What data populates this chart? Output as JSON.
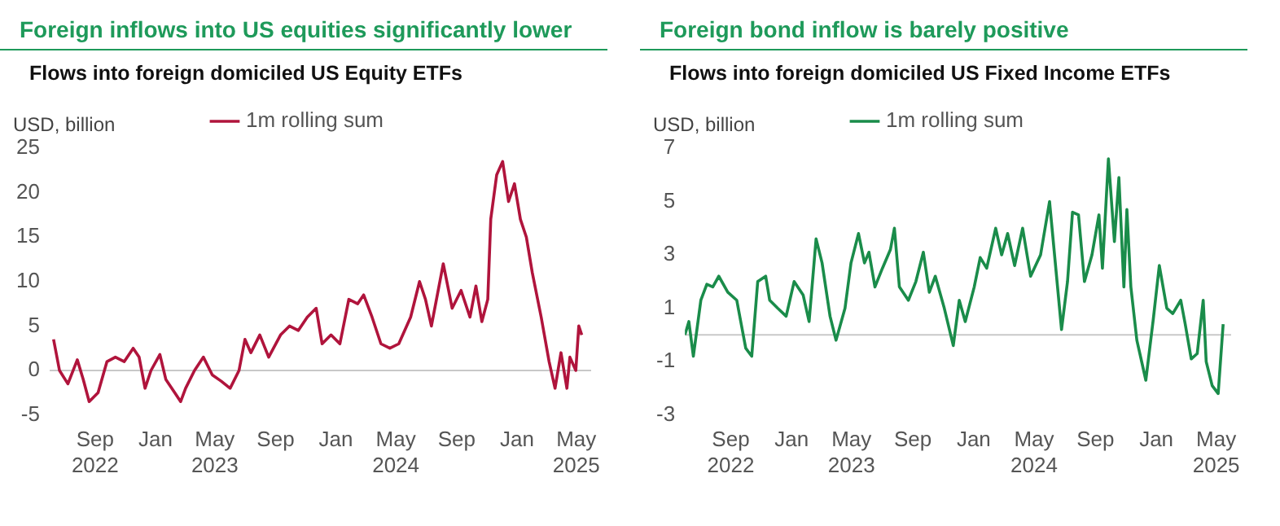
{
  "chart_data": [
    {
      "type": "line",
      "title": "Foreign inflows into US equities significantly lower",
      "subtitle": "Flows into foreign domiciled US Equity ETFs",
      "ylabel": "USD, billion",
      "legend": "top",
      "grid": false,
      "xlim": [
        "2022-06-01",
        "2025-05-31"
      ],
      "ylim": [
        -5,
        25
      ],
      "yticks": [
        -5,
        0,
        5,
        10,
        15,
        20,
        25
      ],
      "xticks": [
        {
          "value": "2022-09-01",
          "label": "Sep\n2022"
        },
        {
          "value": "2023-01-01",
          "label": "Jan"
        },
        {
          "value": "2023-05-01",
          "label": "May\n2023"
        },
        {
          "value": "2023-09-01",
          "label": "Sep"
        },
        {
          "value": "2024-01-01",
          "label": "Jan"
        },
        {
          "value": "2024-05-01",
          "label": "May\n2024"
        },
        {
          "value": "2024-09-01",
          "label": "Sep"
        },
        {
          "value": "2025-01-01",
          "label": "Jan"
        },
        {
          "value": "2025-05-01",
          "label": "May\n2025"
        }
      ],
      "ref_lines": [
        {
          "axis": "y",
          "value": 0,
          "color": "#c8c8c8"
        }
      ],
      "series": [
        {
          "name": "1m rolling sum",
          "color": "#b0143c",
          "x": [
            "2022-06-09",
            "2022-06-21",
            "2022-07-08",
            "2022-07-27",
            "2022-08-08",
            "2022-08-20",
            "2022-09-07",
            "2022-09-25",
            "2022-10-12",
            "2022-10-30",
            "2022-11-17",
            "2022-11-29",
            "2022-12-11",
            "2022-12-23",
            "2023-01-10",
            "2023-01-22",
            "2023-02-09",
            "2023-02-21",
            "2023-03-03",
            "2023-03-21",
            "2023-04-08",
            "2023-04-26",
            "2023-05-14",
            "2023-06-01",
            "2023-06-19",
            "2023-07-01",
            "2023-07-13",
            "2023-07-31",
            "2023-08-18",
            "2023-09-11",
            "2023-09-29",
            "2023-10-17",
            "2023-11-04",
            "2023-11-22",
            "2023-12-04",
            "2023-12-22",
            "2024-01-09",
            "2024-01-27",
            "2024-02-14",
            "2024-02-26",
            "2024-03-14",
            "2024-04-01",
            "2024-04-19",
            "2024-05-07",
            "2024-05-31",
            "2024-06-18",
            "2024-06-30",
            "2024-07-12",
            "2024-08-05",
            "2024-08-23",
            "2024-09-10",
            "2024-09-28",
            "2024-10-10",
            "2024-10-22",
            "2024-11-03",
            "2024-11-09",
            "2024-11-21",
            "2024-12-03",
            "2024-12-15",
            "2024-12-27",
            "2025-01-08",
            "2025-01-20",
            "2025-02-01",
            "2025-02-19",
            "2025-03-07",
            "2025-03-19",
            "2025-03-31",
            "2025-04-12",
            "2025-04-18",
            "2025-04-30",
            "2025-05-06",
            "2025-05-12"
          ],
          "values": [
            3.5,
            0,
            -1.5,
            1.2,
            -1,
            -3.5,
            -2.5,
            1,
            1.5,
            1,
            2.5,
            1.5,
            -2,
            0,
            1.8,
            -1,
            -2.5,
            -3.5,
            -2,
            0,
            1.5,
            -0.5,
            -1.2,
            -2,
            0,
            3.5,
            2,
            4,
            1.5,
            4,
            5,
            4.5,
            6,
            7,
            3,
            4,
            3,
            8,
            7.5,
            8.5,
            6,
            3,
            2.5,
            3,
            6,
            10,
            8,
            5,
            12,
            7,
            9,
            6,
            9.5,
            5.5,
            8,
            17,
            22,
            23.5,
            19,
            21,
            17,
            15,
            11,
            6,
            1,
            -2,
            2,
            -2,
            1.5,
            0,
            5,
            4
          ]
        }
      ]
    },
    {
      "type": "line",
      "title": "Foreign bond inflow is barely positive",
      "subtitle": "Flows into foreign domiciled US Fixed Income ETFs",
      "ylabel": "USD, billion",
      "legend": "top",
      "grid": false,
      "xlim": [
        "2022-06-01",
        "2025-05-31"
      ],
      "ylim": [
        -3,
        7
      ],
      "yticks": [
        -3,
        -1,
        1,
        3,
        5,
        7
      ],
      "xticks": [
        {
          "value": "2022-09-01",
          "label": "Sep\n2022"
        },
        {
          "value": "2023-01-01",
          "label": "Jan"
        },
        {
          "value": "2023-05-01",
          "label": "May\n2023"
        },
        {
          "value": "2023-09-01",
          "label": "Sep"
        },
        {
          "value": "2024-01-01",
          "label": "Jan"
        },
        {
          "value": "2024-05-01",
          "label": "May\n2024"
        },
        {
          "value": "2024-09-01",
          "label": "Sep"
        },
        {
          "value": "2025-01-01",
          "label": "Jan"
        },
        {
          "value": "2025-05-01",
          "label": "May\n2025"
        }
      ],
      "ref_lines": [
        {
          "axis": "y",
          "value": 0,
          "color": "#c8c8c8"
        }
      ],
      "series": [
        {
          "name": "1m rolling sum",
          "color": "#1a8c4a",
          "x": [
            "2022-06-01",
            "2022-06-09",
            "2022-06-18",
            "2022-07-03",
            "2022-07-15",
            "2022-07-27",
            "2022-08-08",
            "2022-08-26",
            "2022-09-13",
            "2022-09-23",
            "2022-10-01",
            "2022-10-13",
            "2022-10-25",
            "2022-11-10",
            "2022-11-18",
            "2022-12-04",
            "2022-12-21",
            "2023-01-06",
            "2023-01-24",
            "2023-02-05",
            "2023-02-19",
            "2023-03-03",
            "2023-03-19",
            "2023-03-31",
            "2023-04-18",
            "2023-04-30",
            "2023-05-15",
            "2023-05-27",
            "2023-06-05",
            "2023-06-17",
            "2023-07-02",
            "2023-07-18",
            "2023-07-26",
            "2023-08-05",
            "2023-08-23",
            "2023-09-07",
            "2023-09-22",
            "2023-10-04",
            "2023-10-16",
            "2023-11-03",
            "2023-11-21",
            "2023-12-03",
            "2023-12-15",
            "2024-01-02",
            "2024-01-14",
            "2024-01-27",
            "2024-02-14",
            "2024-02-26",
            "2024-03-09",
            "2024-03-23",
            "2024-04-08",
            "2024-04-24",
            "2024-05-14",
            "2024-06-01",
            "2024-06-11",
            "2024-06-25",
            "2024-07-07",
            "2024-07-17",
            "2024-07-29",
            "2024-08-10",
            "2024-08-25",
            "2024-09-08",
            "2024-09-15",
            "2024-09-27",
            "2024-10-09",
            "2024-10-18",
            "2024-10-28",
            "2024-11-03",
            "2024-11-11",
            "2024-11-23",
            "2024-12-11",
            "2024-12-26",
            "2025-01-07",
            "2025-01-22",
            "2025-02-03",
            "2025-02-19",
            "2025-02-28",
            "2025-03-12",
            "2025-03-24",
            "2025-04-05",
            "2025-04-11",
            "2025-04-23",
            "2025-05-05",
            "2025-05-15"
          ],
          "values": [
            0,
            0.5,
            -0.8,
            1.3,
            1.9,
            1.8,
            2.2,
            1.6,
            1.3,
            0.3,
            -0.5,
            -0.8,
            2,
            2.2,
            1.3,
            1,
            0.7,
            2,
            1.5,
            0.5,
            3.6,
            2.7,
            0.7,
            -0.2,
            1,
            2.7,
            3.8,
            2.7,
            3.1,
            1.8,
            2.5,
            3.2,
            4,
            1.8,
            1.3,
            2,
            3.1,
            1.6,
            2.2,
            1,
            -0.4,
            1.3,
            0.5,
            1.8,
            2.9,
            2.5,
            4,
            3,
            3.8,
            2.6,
            4,
            2.2,
            3,
            5,
            3,
            0.2,
            2,
            4.6,
            4.5,
            2,
            3,
            4.5,
            2.5,
            6.6,
            3.5,
            5.9,
            1.8,
            4.7,
            1.8,
            -0.2,
            -1.7,
            0.6,
            2.6,
            1,
            0.8,
            1.3,
            0.4,
            -0.9,
            -0.7,
            1.3,
            -1,
            -1.9,
            -2.2,
            0.4
          ]
        }
      ]
    }
  ]
}
